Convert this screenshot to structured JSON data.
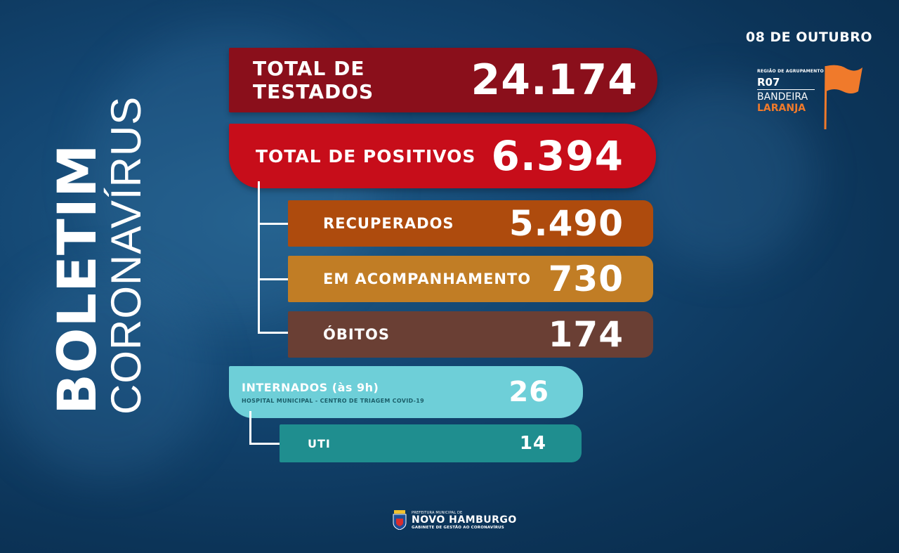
{
  "side": {
    "title_bold": "BOLETIM",
    "title_light": "CORONAVÍRUS"
  },
  "date": "08 DE OUTUBRO",
  "flag": {
    "region_label": "REGIÃO DE AGRUPAMENTO",
    "code": "R07",
    "line1": "BANDEIRA",
    "line2": "LARANJA",
    "color": "#f07a2b"
  },
  "stats": {
    "testados": {
      "label": "TOTAL DE TESTADOS",
      "value": "24.174",
      "color": "#8a0f1b"
    },
    "positivos": {
      "label": "TOTAL DE POSITIVOS",
      "value": "6.394",
      "color": "#c70d1a"
    },
    "recuperados": {
      "label": "RECUPERADOS",
      "value": "5.490",
      "color": "#ae4b0d"
    },
    "acompanhamento": {
      "label": "EM ACOMPANHAMENTO",
      "value": "730",
      "color": "#c17d25"
    },
    "obitos": {
      "label": "ÓBITOS",
      "value": "174",
      "color": "#6a3f34"
    },
    "internados": {
      "label": "INTERNADOS (às 9h)",
      "sublabel": "HOSPITAL MUNICIPAL - CENTRO DE TRIAGEM COVID-19",
      "value": "26",
      "color": "#6ecfd8"
    },
    "uti": {
      "label": "UTI",
      "value": "14",
      "color": "#1f8e8f"
    }
  },
  "footer": {
    "small": "PREFEITURA MUNICIPAL DE",
    "city": "NOVO HAMBURGO",
    "sub": "GABINETE DE GESTÃO AO CORONAVÍRUS"
  }
}
